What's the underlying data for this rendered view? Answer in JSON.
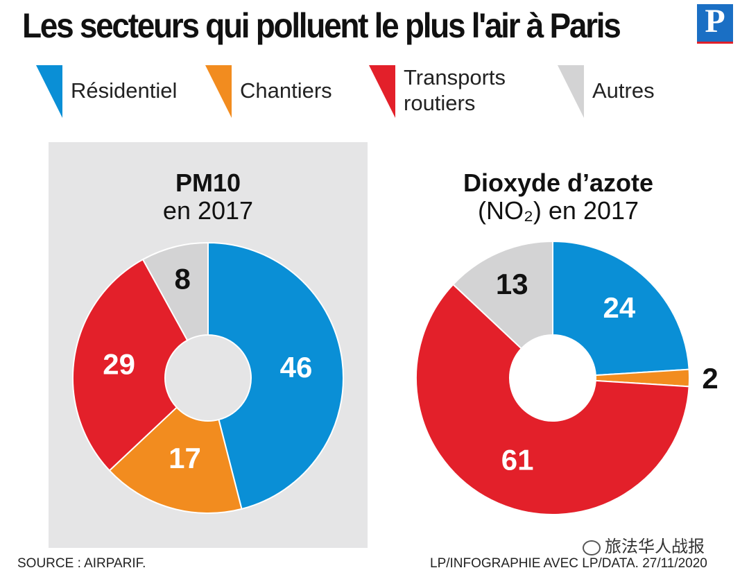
{
  "title": "Les secteurs qui polluent le plus l'air à Paris",
  "logo_letter": "P",
  "legend": [
    {
      "label": "Résidentiel",
      "color": "#0a8fd6"
    },
    {
      "label": "Chantiers",
      "color": "#f28c1f"
    },
    {
      "label": "Transports routiers",
      "color": "#e3202a"
    },
    {
      "label": "Autres",
      "color": "#d3d3d4"
    }
  ],
  "footer": {
    "source": "SOURCE : AIRPARIF.",
    "credit": "LP/INFOGRAPHIE AVEC LP/DATA.  27/11/2020"
  },
  "watermark": "旅法华人战报",
  "chart_data": [
    {
      "type": "pie",
      "title_bold": "PM10",
      "title_rest": "en 2017",
      "categories": [
        "Résidentiel",
        "Chantiers",
        "Transports routiers",
        "Autres"
      ],
      "values": [
        46,
        17,
        29,
        8
      ],
      "colors": [
        "#0a8fd6",
        "#f28c1f",
        "#e3202a",
        "#d3d3d4"
      ],
      "donut": true
    },
    {
      "type": "pie",
      "title_bold": "Dioxyde d’azote",
      "title_rest": "(NO₂) en 2017",
      "categories": [
        "Résidentiel",
        "Chantiers",
        "Transports routiers",
        "Autres"
      ],
      "values": [
        24,
        2,
        61,
        13
      ],
      "colors": [
        "#0a8fd6",
        "#f28c1f",
        "#e3202a",
        "#d3d3d4"
      ],
      "donut": true
    }
  ]
}
